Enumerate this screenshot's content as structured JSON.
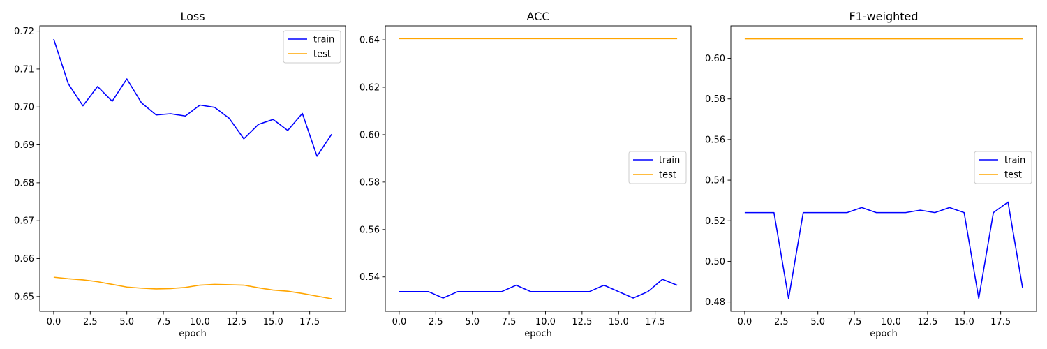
{
  "colors": {
    "train": "#0000ff",
    "test": "#ffa500"
  },
  "chart_data": [
    {
      "type": "line",
      "title": "Loss",
      "xlabel": "epoch",
      "ylabel": "",
      "x": [
        0,
        1,
        2,
        3,
        4,
        5,
        6,
        7,
        8,
        9,
        10,
        11,
        12,
        13,
        14,
        15,
        16,
        17,
        18,
        19
      ],
      "xlim": [
        -0.95,
        19.95
      ],
      "ylim": [
        0.6461,
        0.7214
      ],
      "xticks": [
        0,
        2.5,
        5,
        7.5,
        10,
        12.5,
        15,
        17.5
      ],
      "xtick_labels": [
        "0.0",
        "2.5",
        "5.0",
        "7.5",
        "10.0",
        "12.5",
        "15.0",
        "17.5"
      ],
      "yticks": [
        0.65,
        0.66,
        0.67,
        0.68,
        0.69,
        0.7,
        0.71,
        0.72
      ],
      "ytick_labels": [
        "0.65",
        "0.66",
        "0.67",
        "0.68",
        "0.69",
        "0.70",
        "0.71",
        "0.72"
      ],
      "legend_position": "top-right",
      "grid": false,
      "series": [
        {
          "name": "train",
          "color": "#0000ff",
          "values": [
            0.7179,
            0.7061,
            0.7003,
            0.7054,
            0.7015,
            0.7074,
            0.7011,
            0.6979,
            0.6982,
            0.6976,
            0.7005,
            0.6999,
            0.697,
            0.6916,
            0.6954,
            0.6967,
            0.6938,
            0.6983,
            0.687,
            0.6928
          ]
        },
        {
          "name": "test",
          "color": "#ffa500",
          "values": [
            0.6551,
            0.6547,
            0.6544,
            0.6539,
            0.6532,
            0.6525,
            0.6522,
            0.652,
            0.6521,
            0.6524,
            0.653,
            0.6532,
            0.6531,
            0.653,
            0.6523,
            0.6517,
            0.6514,
            0.6508,
            0.6501,
            0.6494
          ]
        }
      ]
    },
    {
      "type": "line",
      "title": "ACC",
      "xlabel": "epoch",
      "ylabel": "",
      "x": [
        0,
        1,
        2,
        3,
        4,
        5,
        6,
        7,
        8,
        9,
        10,
        11,
        12,
        13,
        14,
        15,
        16,
        17,
        18,
        19
      ],
      "xlim": [
        -0.95,
        19.95
      ],
      "ylim": [
        0.5255,
        0.6459
      ],
      "xticks": [
        0,
        2.5,
        5,
        7.5,
        10,
        12.5,
        15,
        17.5
      ],
      "xtick_labels": [
        "0.0",
        "2.5",
        "5.0",
        "7.5",
        "10.0",
        "12.5",
        "15.0",
        "17.5"
      ],
      "yticks": [
        0.54,
        0.56,
        0.58,
        0.6,
        0.62,
        0.64
      ],
      "ytick_labels": [
        "0.54",
        "0.56",
        "0.58",
        "0.60",
        "0.62",
        "0.64"
      ],
      "legend_position": "center-right",
      "grid": false,
      "series": [
        {
          "name": "train",
          "color": "#0000ff",
          "values": [
            0.5338,
            0.5338,
            0.5338,
            0.5311,
            0.5338,
            0.5338,
            0.5338,
            0.5338,
            0.5365,
            0.5338,
            0.5338,
            0.5338,
            0.5338,
            0.5338,
            0.5365,
            0.5338,
            0.5311,
            0.5338,
            0.539,
            0.5365
          ]
        },
        {
          "name": "test",
          "color": "#ffa500",
          "values": [
            0.6405,
            0.6405,
            0.6405,
            0.6405,
            0.6405,
            0.6405,
            0.6405,
            0.6405,
            0.6405,
            0.6405,
            0.6405,
            0.6405,
            0.6405,
            0.6405,
            0.6405,
            0.6405,
            0.6405,
            0.6405,
            0.6405,
            0.6405
          ]
        }
      ]
    },
    {
      "type": "line",
      "title": "F1-weighted",
      "xlabel": "epoch",
      "ylabel": "",
      "x": [
        0,
        1,
        2,
        3,
        4,
        5,
        6,
        7,
        8,
        9,
        10,
        11,
        12,
        13,
        14,
        15,
        16,
        17,
        18,
        19
      ],
      "xlim": [
        -0.95,
        19.95
      ],
      "ylim": [
        0.4754,
        0.616
      ],
      "xticks": [
        0,
        2.5,
        5,
        7.5,
        10,
        12.5,
        15,
        17.5
      ],
      "xtick_labels": [
        "0.0",
        "2.5",
        "5.0",
        "7.5",
        "10.0",
        "12.5",
        "15.0",
        "17.5"
      ],
      "yticks": [
        0.48,
        0.5,
        0.52,
        0.54,
        0.56,
        0.58,
        0.6
      ],
      "ytick_labels": [
        "0.48",
        "0.50",
        "0.52",
        "0.54",
        "0.56",
        "0.58",
        "0.60"
      ],
      "legend_position": "center-right",
      "grid": false,
      "series": [
        {
          "name": "train",
          "color": "#0000ff",
          "values": [
            0.524,
            0.524,
            0.524,
            0.4817,
            0.524,
            0.524,
            0.524,
            0.524,
            0.5265,
            0.524,
            0.524,
            0.524,
            0.5252,
            0.524,
            0.5265,
            0.524,
            0.4817,
            0.524,
            0.5292,
            0.4868
          ]
        },
        {
          "name": "test",
          "color": "#ffa500",
          "values": [
            0.6096,
            0.6096,
            0.6096,
            0.6096,
            0.6096,
            0.6096,
            0.6096,
            0.6096,
            0.6096,
            0.6096,
            0.6096,
            0.6096,
            0.6096,
            0.6096,
            0.6096,
            0.6096,
            0.6096,
            0.6096,
            0.6096,
            0.6096
          ]
        }
      ]
    }
  ]
}
